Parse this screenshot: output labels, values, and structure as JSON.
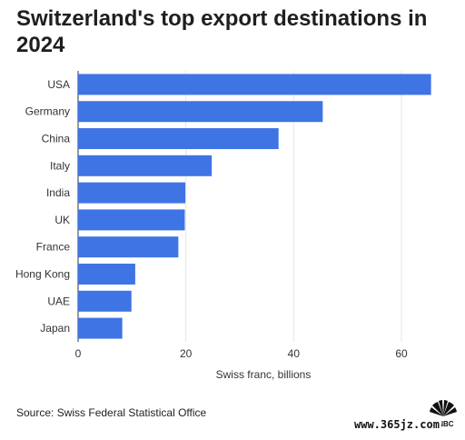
{
  "title": "Switzerland's top export destinations in 2024",
  "source": "Source: Swiss Federal Statistical Office",
  "watermark": "www.365jz.com",
  "logo": "CNBC",
  "colors": {
    "bar": "#3f74e4",
    "grid": "#e6e6e6",
    "axis": "#333333"
  },
  "chart_data": {
    "type": "bar",
    "orientation": "horizontal",
    "title": "Switzerland's top export destinations in 2024",
    "xlabel": "Swiss franc, billions",
    "ylabel": "",
    "categories": [
      "USA",
      "Germany",
      "China",
      "Italy",
      "India",
      "UK",
      "France",
      "Hong Kong",
      "UAE",
      "Japan"
    ],
    "values": [
      65.5,
      45.4,
      37.2,
      24.8,
      19.9,
      19.8,
      18.6,
      10.6,
      9.9,
      8.2
    ],
    "xlim": [
      0,
      67
    ],
    "xticks": [
      0,
      20,
      40,
      60
    ],
    "grid": true,
    "legend": "none"
  }
}
